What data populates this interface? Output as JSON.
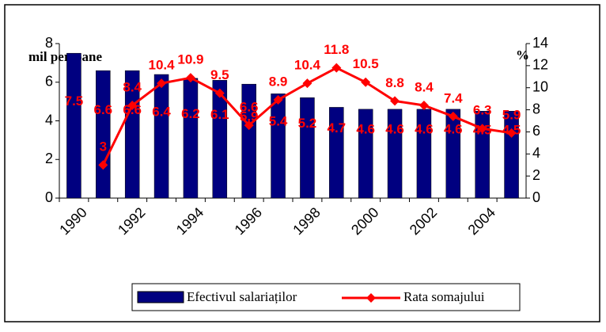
{
  "chart_data": {
    "type": "bar_line",
    "categories": [
      "1990",
      null,
      "1992",
      null,
      "1994",
      null,
      "1996",
      null,
      "1998",
      null,
      "2000",
      null,
      "2002",
      null,
      "2004",
      null
    ],
    "ylabel": "mil persoane",
    "y2label": "%",
    "ylim": [
      0,
      8
    ],
    "yticks": [
      0,
      2,
      4,
      6,
      8
    ],
    "y2lim": [
      0,
      14
    ],
    "y2ticks": [
      0,
      2,
      4,
      6,
      8,
      10,
      12,
      14
    ],
    "legend": "bottom",
    "series": [
      {
        "name": "Efectivul salariaților",
        "type": "bar",
        "color": "#000080",
        "values": [
          7.5,
          6.6,
          6.6,
          6.4,
          6.2,
          6.1,
          5.9,
          5.4,
          5.2,
          4.7,
          4.6,
          4.6,
          4.6,
          4.6,
          4.5,
          4.5
        ]
      },
      {
        "name": "Rata somajului",
        "type": "line",
        "color": "#ff0000",
        "axis": "y2",
        "values": [
          null,
          3,
          8.4,
          10.4,
          10.9,
          9.5,
          6.6,
          8.9,
          10.4,
          11.8,
          10.5,
          8.8,
          8.4,
          7.4,
          6.3,
          5.9
        ]
      }
    ]
  }
}
